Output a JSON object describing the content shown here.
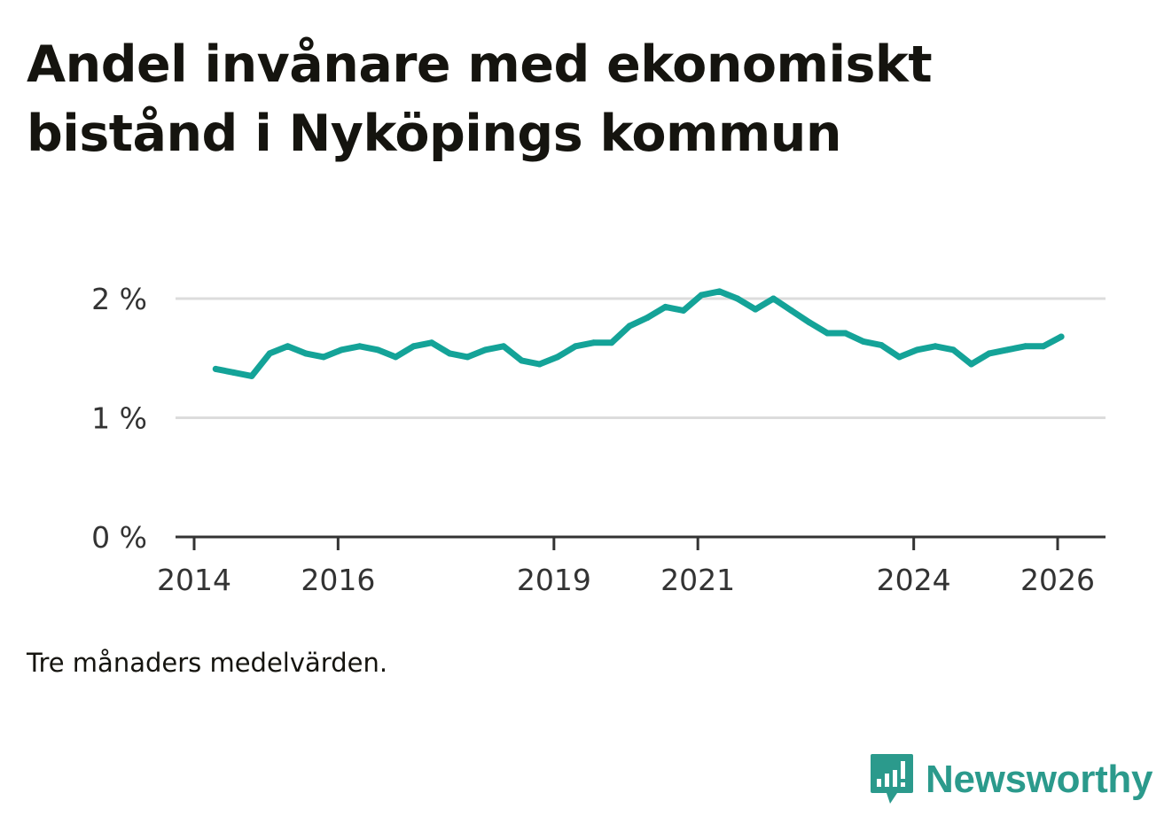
{
  "title": "Andel invånare med ekonomiskt bistånd i Nyköpings kommun",
  "note": "Tre månaders medelvärden.",
  "brand": {
    "name": "Newsworthy",
    "icon": "newsworthy-logo-icon",
    "color": "#2b9a8c"
  },
  "chart_data": {
    "type": "line",
    "title": "Andel invånare med ekonomiskt bistånd i Nyköpings kommun",
    "xlabel": "",
    "ylabel": "",
    "ylim": [
      0,
      2
    ],
    "xlim": [
      2013.9,
      2026.6
    ],
    "grid": true,
    "line_color": "#14a398",
    "y_ticks": [
      {
        "value": 0,
        "label": "0 %"
      },
      {
        "value": 1,
        "label": "1 %"
      },
      {
        "value": 2,
        "label": "2 %"
      }
    ],
    "x_ticks": [
      {
        "value": 2014,
        "label": "2014"
      },
      {
        "value": 2016,
        "label": "2016"
      },
      {
        "value": 2019,
        "label": "2019"
      },
      {
        "value": 2021,
        "label": "2021"
      },
      {
        "value": 2024,
        "label": "2024"
      },
      {
        "value": 2026,
        "label": "2026"
      }
    ],
    "series": [
      {
        "name": "Andel invånare med ekonomiskt bistånd",
        "x": [
          2014.3,
          2014.55,
          2014.8,
          2015.05,
          2015.3,
          2015.55,
          2015.8,
          2016.05,
          2016.3,
          2016.55,
          2016.8,
          2017.05,
          2017.3,
          2017.55,
          2017.8,
          2018.05,
          2018.3,
          2018.55,
          2018.8,
          2019.05,
          2019.3,
          2019.55,
          2019.8,
          2020.05,
          2020.3,
          2020.55,
          2020.8,
          2021.05,
          2021.3,
          2021.55,
          2021.8,
          2022.05,
          2022.3,
          2022.55,
          2022.8,
          2023.05,
          2023.3,
          2023.55,
          2023.8,
          2024.05,
          2024.3,
          2024.55,
          2024.8,
          2025.05,
          2025.3,
          2025.55,
          2025.8,
          2026.05
        ],
        "y": [
          1.41,
          1.38,
          1.35,
          1.54,
          1.6,
          1.54,
          1.51,
          1.57,
          1.6,
          1.57,
          1.51,
          1.6,
          1.63,
          1.54,
          1.51,
          1.57,
          1.6,
          1.48,
          1.45,
          1.51,
          1.6,
          1.63,
          1.63,
          1.77,
          1.84,
          1.93,
          1.9,
          2.03,
          2.06,
          2.0,
          1.91,
          2.0,
          1.9,
          1.8,
          1.71,
          1.71,
          1.64,
          1.61,
          1.51,
          1.57,
          1.6,
          1.57,
          1.45,
          1.54,
          1.57,
          1.6,
          1.6,
          1.68
        ]
      }
    ]
  }
}
